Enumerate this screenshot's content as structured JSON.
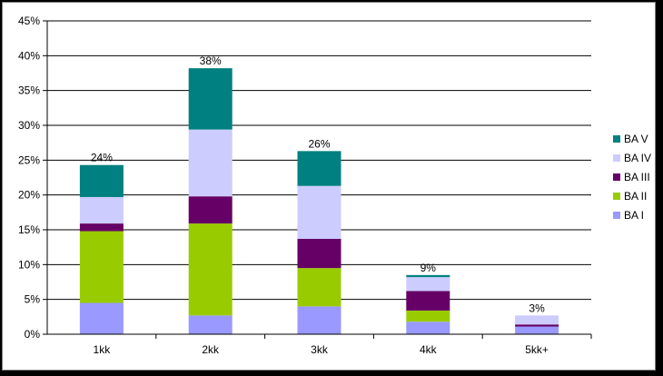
{
  "chart_data": {
    "type": "bar",
    "stacked": true,
    "categories": [
      "1kk",
      "2kk",
      "3kk",
      "4kk",
      "5kk+"
    ],
    "series": [
      {
        "name": "BA I",
        "color": "#9999ff",
        "values": [
          4.5,
          2.7,
          4.0,
          1.8,
          1.1
        ]
      },
      {
        "name": "BA II",
        "color": "#99cc00",
        "values": [
          10.3,
          13.2,
          5.5,
          1.6,
          0.0
        ]
      },
      {
        "name": "BA III",
        "color": "#660066",
        "values": [
          1.1,
          3.9,
          4.2,
          2.8,
          0.3
        ]
      },
      {
        "name": "BA IV",
        "color": "#ccccff",
        "values": [
          3.8,
          9.6,
          7.6,
          2.0,
          1.3
        ]
      },
      {
        "name": "BA V",
        "color": "#008080",
        "values": [
          4.6,
          8.8,
          5.0,
          0.3,
          0.0
        ]
      }
    ],
    "totals_labels": [
      "24%",
      "38%",
      "26%",
      "9%",
      "3%"
    ],
    "y_ticks": [
      "0%",
      "5%",
      "10%",
      "15%",
      "20%",
      "25%",
      "30%",
      "35%",
      "40%",
      "45%"
    ],
    "ylim": [
      0,
      45
    ],
    "grid": true,
    "legend_position": "right",
    "legend_order": [
      "BA V",
      "BA IV",
      "BA III",
      "BA II",
      "BA I"
    ]
  }
}
